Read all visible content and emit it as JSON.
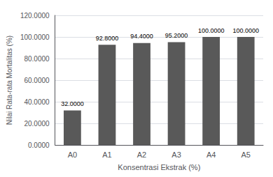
{
  "chart_data": {
    "type": "bar",
    "categories": [
      "A0",
      "A1",
      "A2",
      "A3",
      "A4",
      "A5"
    ],
    "values": [
      32.0,
      92.8,
      94.4,
      95.2,
      100.0,
      100.0
    ],
    "value_labels": [
      "32.0000",
      "92.8000",
      "94.4000",
      "95.2000",
      "100.0000",
      "100.0000"
    ],
    "data_labels": true,
    "color": "#595959",
    "xlabel": "Konsentrasi Ekstrak (%)",
    "ylabel": "Nilai Rata-rata Mortalitas (%)",
    "ylim": [
      0,
      120
    ],
    "yticks": [
      {
        "value": 0,
        "label": "0.0000"
      },
      {
        "value": 20,
        "label": "20.0000"
      },
      {
        "value": 40,
        "label": "40.0000"
      },
      {
        "value": 60,
        "label": "60.0000"
      },
      {
        "value": 80,
        "label": "80.0000"
      },
      {
        "value": 100,
        "label": "100.0000"
      },
      {
        "value": 120,
        "label": "120.0000"
      }
    ],
    "grid": true
  }
}
